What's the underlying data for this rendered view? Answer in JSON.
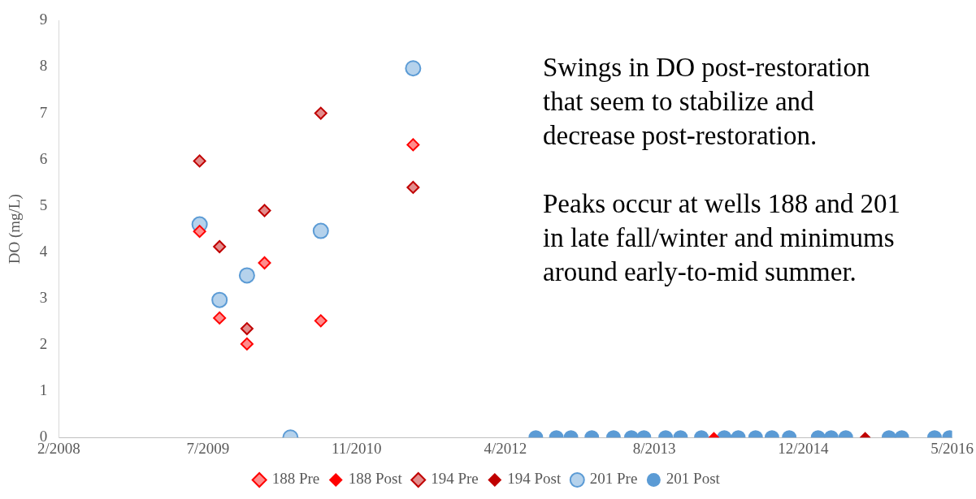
{
  "chart_data": {
    "type": "scatter",
    "ylabel": "DO (mg/L)",
    "xlim": [
      "2008-02-22",
      "2016-05-10"
    ],
    "xticks": [
      {
        "value": "2008-02-22",
        "label": "2/2008"
      },
      {
        "value": "2009-07-07",
        "label": "7/2009"
      },
      {
        "value": "2010-11-18",
        "label": "11/2010"
      },
      {
        "value": "2012-04-01",
        "label": "4/2012"
      },
      {
        "value": "2013-08-14",
        "label": "8/2013"
      },
      {
        "value": "2014-12-27",
        "label": "12/2014"
      },
      {
        "value": "2016-05-10",
        "label": "5/2016"
      }
    ],
    "ylim": [
      0,
      9
    ],
    "yticks": [
      0,
      1,
      2,
      3,
      4,
      5,
      6,
      7,
      8,
      9
    ],
    "grid": false,
    "legend": "bottom",
    "annotations": [
      "Swings in DO post-restoration that seem to stabilize and decrease post-restoration.",
      "Peaks occur at wells 188 and 201 in late fall/winter and minimums around early-to-mid summer."
    ],
    "series": [
      {
        "name": "188 Pre",
        "color": "#ff0000",
        "marker": "diamond",
        "x": [
          "2009-06-09",
          "2009-08-15",
          "2009-11-15",
          "2010-01-13",
          "2010-07-21",
          "2011-05-27"
        ],
        "values": [
          4.45,
          2.58,
          2.02,
          3.77,
          2.52,
          6.32
        ]
      },
      {
        "name": "188 Post",
        "color": "#ff0000",
        "marker": "diamond",
        "x": [
          "2014-03-02"
        ],
        "values": [
          0
        ]
      },
      {
        "name": "194 Pre",
        "color": "#c00000",
        "marker": "diamond",
        "x": [
          "2009-06-09",
          "2009-08-15",
          "2009-11-15",
          "2010-01-13",
          "2010-07-21",
          "2011-05-27"
        ],
        "values": [
          5.97,
          4.12,
          2.35,
          4.9,
          7.0,
          5.4
        ]
      },
      {
        "name": "194 Post",
        "color": "#c00000",
        "marker": "diamond",
        "x": [
          "2015-07-23"
        ],
        "values": [
          0
        ]
      },
      {
        "name": "201 Pre",
        "color": "#5b9bd5",
        "marker": "circle",
        "x": [
          "2009-06-09",
          "2009-08-15",
          "2009-11-15",
          "2010-04-10",
          "2010-07-21",
          "2011-05-27"
        ],
        "values": [
          4.6,
          2.97,
          3.5,
          0,
          4.46,
          7.97
        ]
      },
      {
        "name": "201 Post",
        "color": "#5b9bd5",
        "marker": "circle",
        "x": [
          "2012-07-12",
          "2012-09-19",
          "2012-11-07",
          "2013-01-16",
          "2013-03-30",
          "2013-05-29",
          "2013-07-10",
          "2013-09-21",
          "2013-11-10",
          "2014-01-19",
          "2014-04-06",
          "2014-05-23",
          "2014-07-20",
          "2014-09-13",
          "2014-11-10",
          "2015-02-15",
          "2015-03-31",
          "2015-05-19",
          "2015-10-11",
          "2015-11-23",
          "2016-03-12",
          "2016-05-01"
        ],
        "values": [
          0,
          0,
          0,
          0,
          0,
          0,
          0,
          0,
          0,
          0,
          0,
          0,
          0,
          0,
          0,
          0,
          0,
          0,
          0,
          0,
          0,
          0
        ]
      }
    ]
  }
}
